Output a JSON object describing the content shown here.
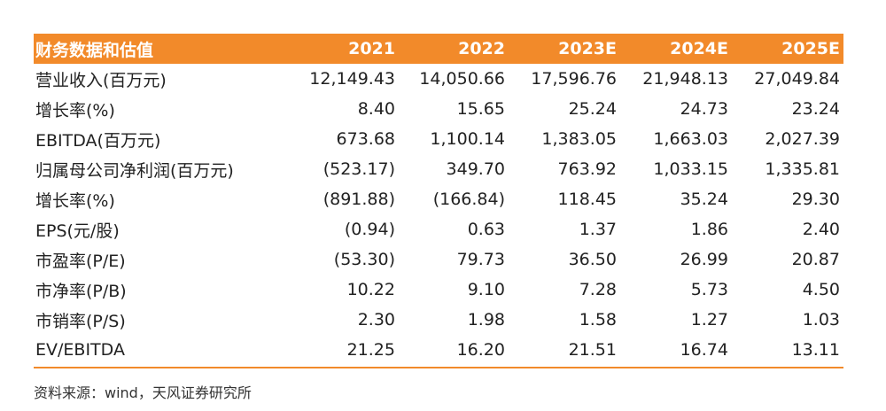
{
  "table": {
    "headers": [
      "财务数据和估值",
      "2021",
      "2022",
      "2023E",
      "2024E",
      "2025E"
    ],
    "rows": [
      {
        "label": "营业收入(百万元)",
        "values": [
          "12,149.43",
          "14,050.66",
          "17,596.76",
          "21,948.13",
          "27,049.84"
        ]
      },
      {
        "label": "增长率(%)",
        "values": [
          "8.40",
          "15.65",
          "25.24",
          "24.73",
          "23.24"
        ]
      },
      {
        "label": "EBITDA(百万元)",
        "values": [
          "673.68",
          "1,100.14",
          "1,383.05",
          "1,663.03",
          "2,027.39"
        ]
      },
      {
        "label": "归属母公司净利润(百万元)",
        "values": [
          "(523.17)",
          "349.70",
          "763.92",
          "1,033.15",
          "1,335.81"
        ]
      },
      {
        "label": "增长率(%)",
        "values": [
          "(891.88)",
          "(166.84)",
          "118.45",
          "35.24",
          "29.30"
        ]
      },
      {
        "label": "EPS(元/股)",
        "values": [
          "(0.94)",
          "0.63",
          "1.37",
          "1.86",
          "2.40"
        ]
      },
      {
        "label": "市盈率(P/E)",
        "values": [
          "(53.30)",
          "79.73",
          "36.50",
          "26.99",
          "20.87"
        ]
      },
      {
        "label": "市净率(P/B)",
        "values": [
          "10.22",
          "9.10",
          "7.28",
          "5.73",
          "4.50"
        ]
      },
      {
        "label": "市销率(P/S)",
        "values": [
          "2.30",
          "1.98",
          "1.58",
          "1.27",
          "1.03"
        ]
      },
      {
        "label": "EV/EBITDA",
        "values": [
          "21.25",
          "16.20",
          "21.51",
          "16.74",
          "13.11"
        ]
      }
    ]
  },
  "source": "资料来源：wind，天风证券研究所",
  "colors": {
    "header_bg": "#f28a2a",
    "header_text": "#ffffff",
    "body_text": "#222222"
  }
}
